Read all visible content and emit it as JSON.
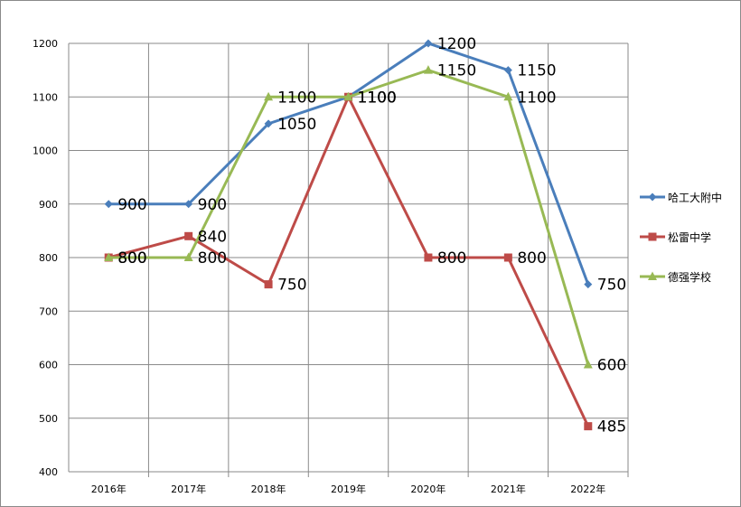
{
  "chart_data": {
    "type": "line",
    "categories": [
      "2016年",
      "2017年",
      "2018年",
      "2019年",
      "2020年",
      "2021年",
      "2022年"
    ],
    "series": [
      {
        "name": "哈工大附中",
        "color": "#4a7ebb",
        "marker": "diamond",
        "values": [
          900,
          900,
          1050,
          1100,
          1200,
          1150,
          750
        ]
      },
      {
        "name": "松雷中学",
        "color": "#be4b48",
        "marker": "square",
        "values": [
          800,
          840,
          750,
          1100,
          800,
          800,
          485
        ]
      },
      {
        "name": "德强学校",
        "color": "#98b954",
        "marker": "triangle",
        "values": [
          800,
          800,
          1100,
          1100,
          1150,
          1100,
          600
        ]
      }
    ],
    "y_ticks": [
      "400",
      "500",
      "600",
      "700",
      "800",
      "900",
      "1000",
      "1100",
      "1200"
    ],
    "ylim": [
      400,
      1200
    ],
    "grid": true,
    "legend_position": "right",
    "data_labels": true
  }
}
